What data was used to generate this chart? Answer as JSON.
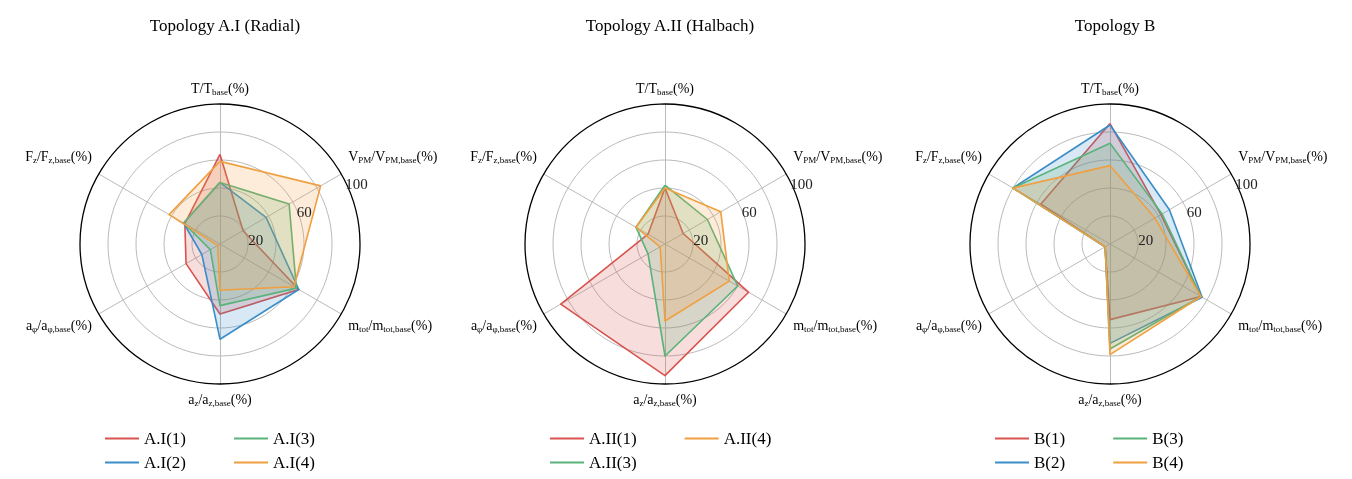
{
  "chart_data": [
    {
      "type": "radar",
      "title": "Topology A.I (Radial)",
      "categories": [
        "T/T$_{base}$(%)",
        "V$_{PM}$/V$_{PM,base}$(%)",
        "m$_{tot}$/m$_{tot,base}$(%)",
        "a$_{z}$/a$_{z,base}$(%)",
        "a$_{φ}$/a$_{φ,base}$(%)",
        "F$_{z}$/F$_{z,base}$(%)"
      ],
      "series": [
        {
          "name": "A.I(1)",
          "color": "#d9534f",
          "values": [
            64,
            19,
            65,
            50,
            28,
            29
          ]
        },
        {
          "name": "A.I(2)",
          "color": "#3a8ec8",
          "values": [
            44,
            38,
            65,
            68,
            15,
            30
          ]
        },
        {
          "name": "A.I(3)",
          "color": "#5ab37a",
          "values": [
            44,
            57,
            63,
            44,
            8,
            30
          ]
        },
        {
          "name": "A.I(4)",
          "color": "#f0a040",
          "values": [
            59,
            83,
            61,
            33,
            2,
            42
          ]
        }
      ],
      "ylim": [
        0,
        100
      ],
      "yticks": [
        20,
        60,
        100
      ],
      "grid": true,
      "legend": "bottom",
      "marker": "none"
    },
    {
      "type": "radar",
      "title": "Topology A.II (Halbach)",
      "categories": [
        "T/T$_{base}$(%)",
        "V$_{PM}$/V$_{PM,base}$(%)",
        "m$_{tot}$/m$_{tot,base}$(%)",
        "a$_{z}$/a$_{z,base}$(%)",
        "a$_{φ}$/a$_{φ,base}$(%)",
        "F$_{z}$/F$_{z,base}$(%)"
      ],
      "series": [
        {
          "name": "A.II(1)",
          "color": "#d9534f",
          "values": [
            40,
            15,
            69,
            94,
            86,
            14
          ]
        },
        {
          "name": "A.II(3)",
          "color": "#5ab37a",
          "values": [
            42,
            35,
            60,
            80,
            14,
            24
          ]
        },
        {
          "name": "A.II(4)",
          "color": "#f0a040",
          "values": [
            40,
            46,
            53,
            55,
            4,
            24
          ]
        }
      ],
      "ylim": [
        0,
        100
      ],
      "yticks": [
        20,
        60,
        100
      ],
      "grid": true,
      "legend": "bottom",
      "marker": "none"
    },
    {
      "type": "radar",
      "title": "Topology B",
      "categories": [
        "T/T$_{base}$(%)",
        "V$_{PM}$/V$_{PM,base}$(%)",
        "m$_{tot}$/m$_{tot,base}$(%)",
        "a$_{z}$/a$_{z,base}$(%)",
        "a$_{φ}$/a$_{φ,base}$(%)",
        "F$_{z}$/F$_{z,base}$(%)"
      ],
      "series": [
        {
          "name": "B(1)",
          "color": "#d9534f",
          "values": [
            86,
            42,
            75,
            54,
            4,
            57
          ]
        },
        {
          "name": "B(2)",
          "color": "#3a8ec8",
          "values": [
            85,
            49,
            76,
            71,
            4,
            80
          ]
        },
        {
          "name": "B(3)",
          "color": "#5ab37a",
          "values": [
            72,
            43,
            75,
            75,
            4,
            80
          ]
        },
        {
          "name": "B(4)",
          "color": "#f0a040",
          "values": [
            56,
            37,
            75,
            79,
            4,
            80
          ]
        }
      ],
      "ylim": [
        0,
        100
      ],
      "yticks": [
        20,
        60,
        100
      ],
      "grid": true,
      "legend": "bottom",
      "marker": "none"
    }
  ]
}
